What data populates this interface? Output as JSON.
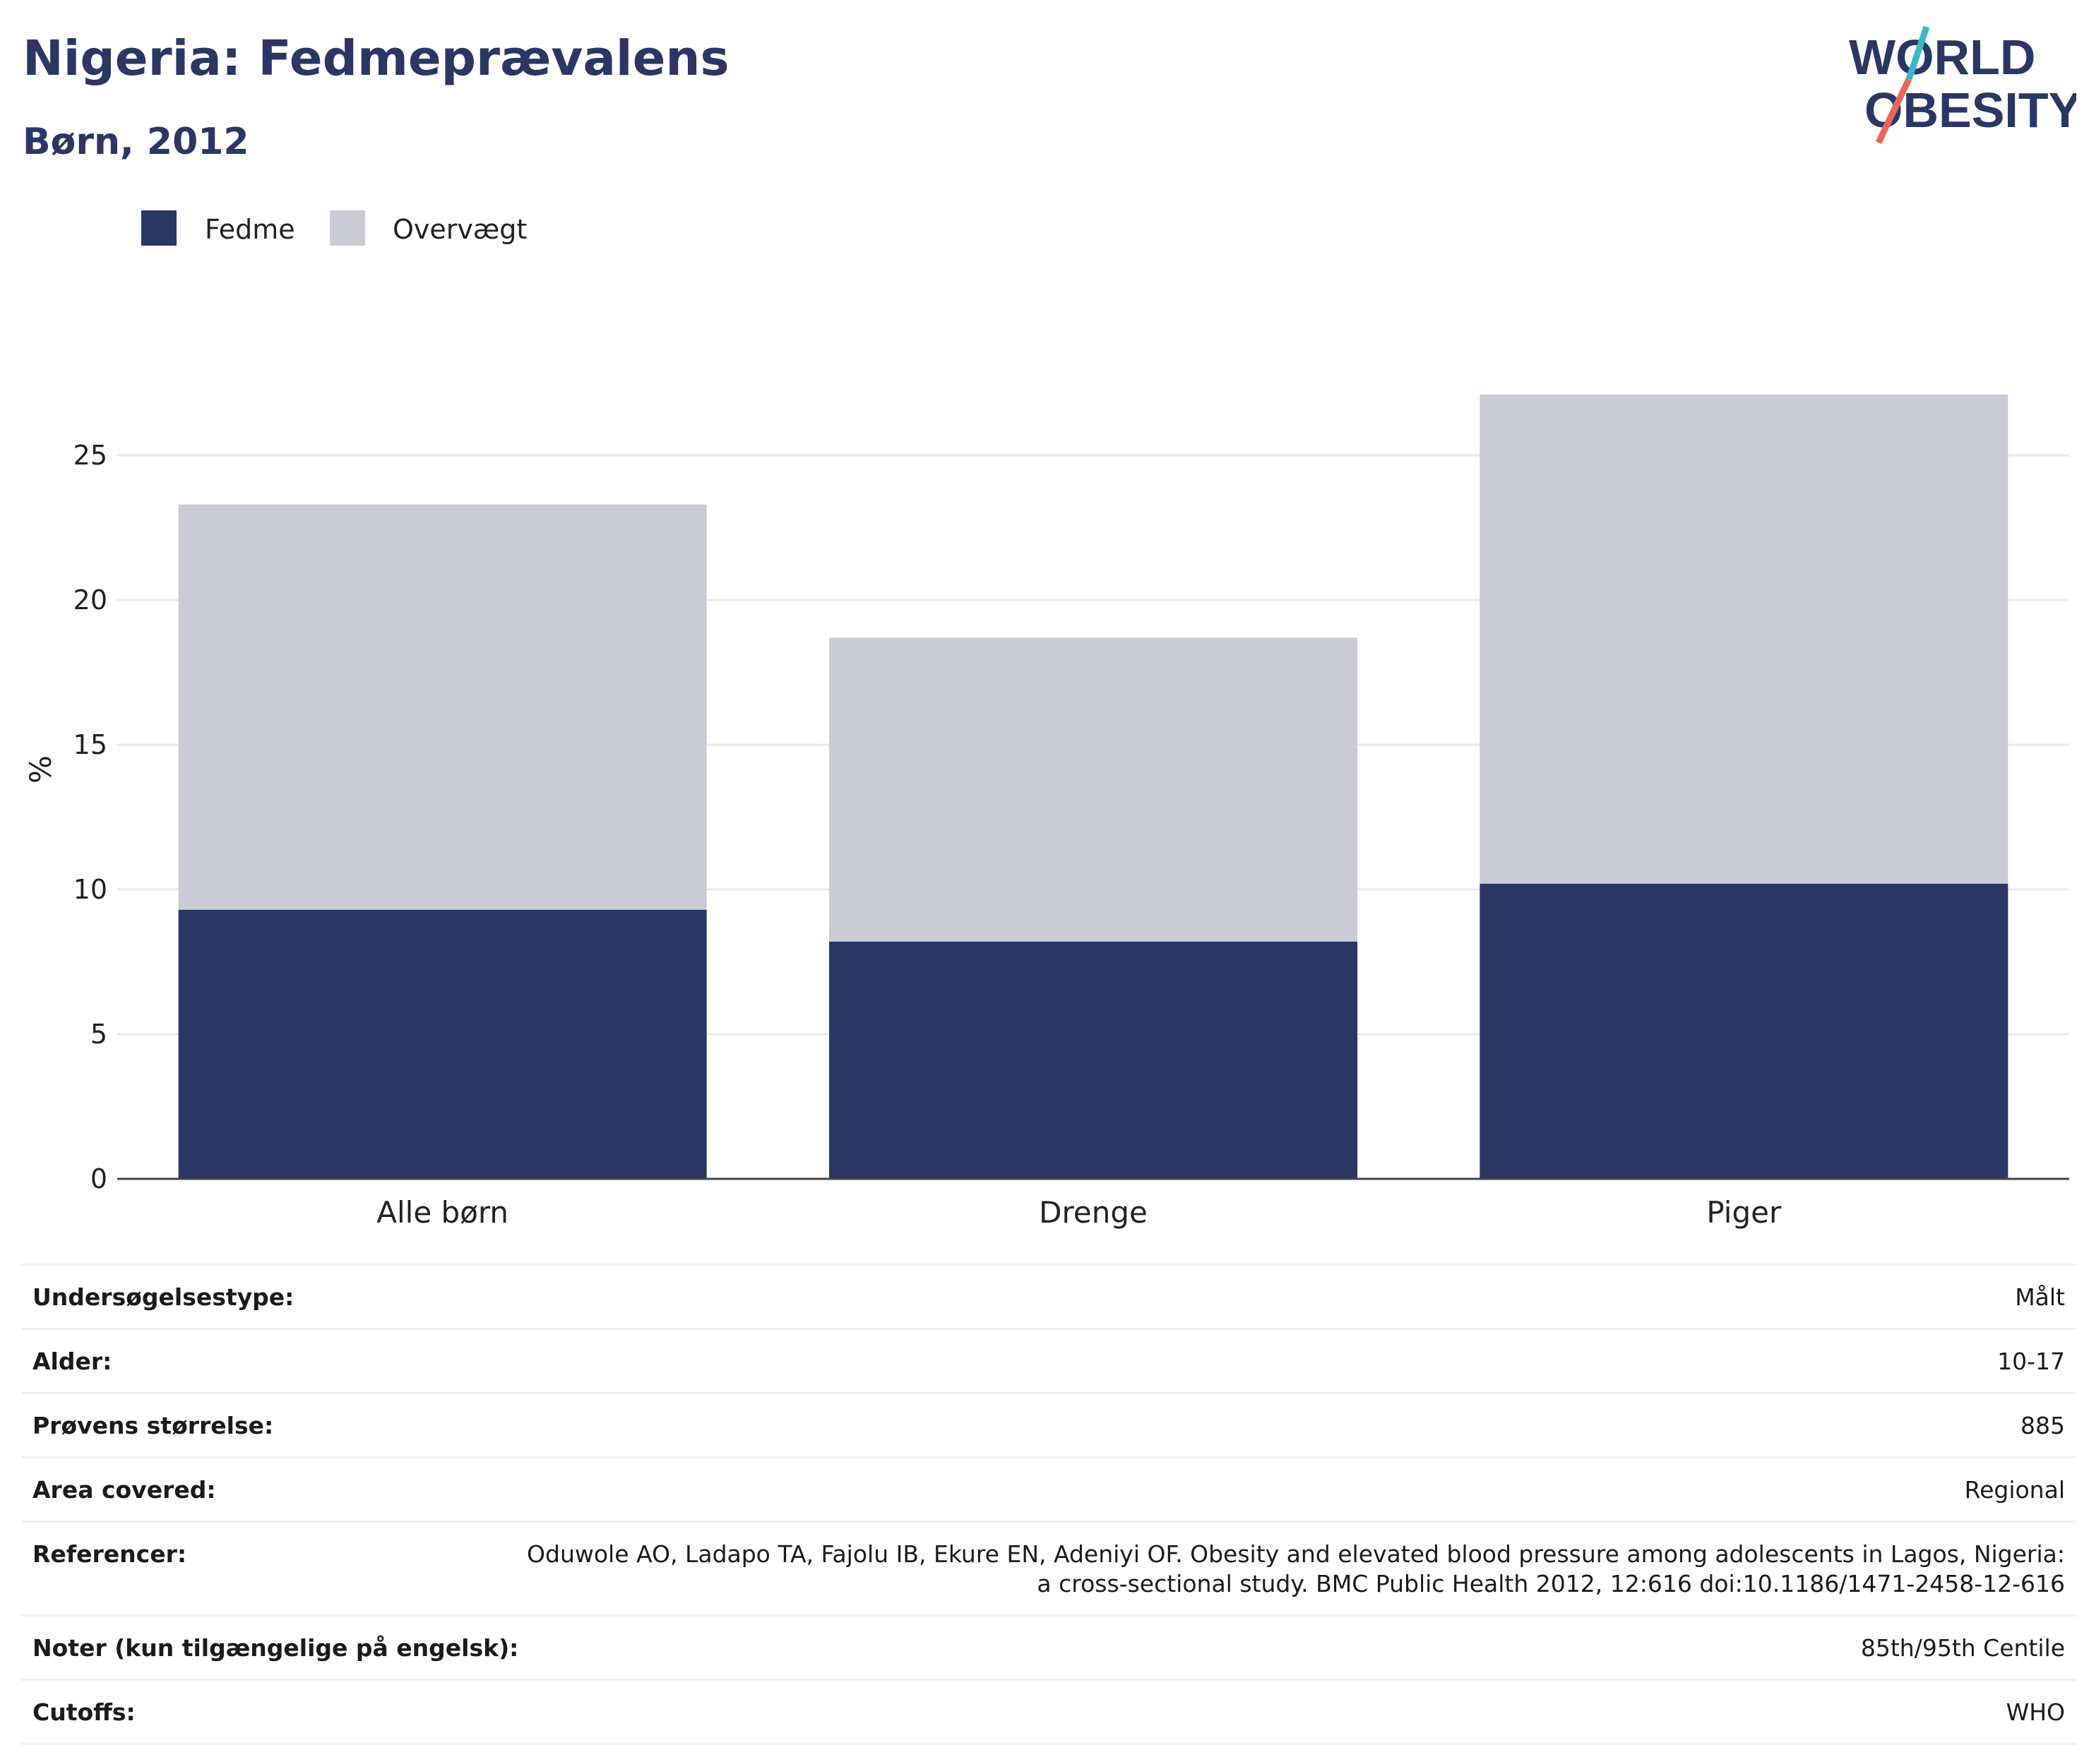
{
  "header": {
    "title": "Nigeria: Fedmeprævalens",
    "subtitle": "Børn, 2012",
    "logo_line1": "WORLD",
    "logo_line2": "OBESITY"
  },
  "colors": {
    "fedme": "#2a3764",
    "overvaegt": "#cacbd6",
    "text": "#2a3764",
    "logo_teal": "#3bb8c4",
    "logo_coral": "#e9675a"
  },
  "chart_data": {
    "type": "bar",
    "stacked": true,
    "categories": [
      "Alle børn",
      "Drenge",
      "Piger"
    ],
    "series": [
      {
        "name": "Fedme",
        "values": [
          9.3,
          8.2,
          10.2
        ]
      },
      {
        "name": "Overvægt",
        "values": [
          14.0,
          10.5,
          16.9
        ]
      }
    ],
    "ylabel": "%",
    "xlabel": "",
    "ylim": [
      0,
      27.2
    ],
    "yticks": [
      0,
      5,
      10,
      15,
      20,
      25
    ],
    "grid": true,
    "legend_position": "top-left"
  },
  "details": [
    {
      "label": "Undersøgelsestype:",
      "value": "Målt"
    },
    {
      "label": "Alder:",
      "value": "10-17"
    },
    {
      "label": "Prøvens størrelse:",
      "value": "885"
    },
    {
      "label": "Area covered:",
      "value": "Regional"
    },
    {
      "label": "Referencer:",
      "value": "Oduwole AO, Ladapo TA, Fajolu IB, Ekure EN, Adeniyi OF. Obesity and elevated blood pressure among adolescents in Lagos, Nigeria: a cross-sectional study. BMC Public Health 2012, 12:616 doi:10.1186/1471-2458-12-616"
    },
    {
      "label": "Noter (kun tilgængelige på engelsk):",
      "value": "85th/95th Centile"
    },
    {
      "label": "Cutoffs:",
      "value": "WHO"
    }
  ]
}
